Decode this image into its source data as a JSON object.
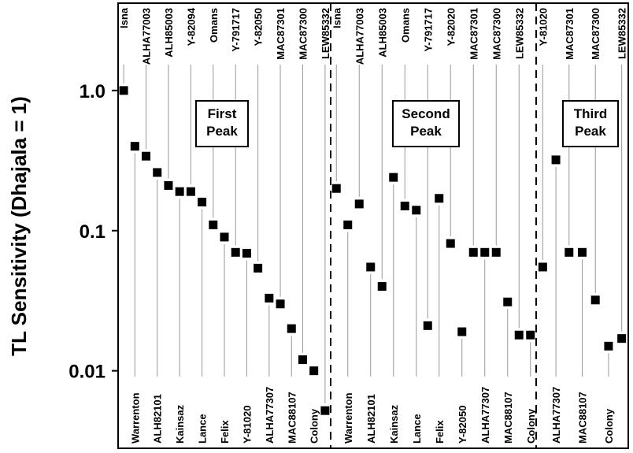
{
  "chart_data": {
    "type": "scatter",
    "ylabel": "TL Sensitivity (Dhajala = 1)",
    "yscale": "log",
    "ylim": [
      0.0028,
      4.2
    ],
    "yticks": [
      {
        "value": 1.0,
        "label": "1.0"
      },
      {
        "value": 0.1,
        "label": "0.1"
      },
      {
        "value": 0.01,
        "label": "0.01"
      }
    ],
    "grid": false,
    "panels": [
      {
        "title_lines": [
          "First",
          "Peak"
        ],
        "points": [
          {
            "label": "Isna",
            "value": 1.0,
            "label_pos": "top"
          },
          {
            "label": "Warrenton",
            "value": 0.4,
            "label_pos": "bottom"
          },
          {
            "label": "ALHA77003",
            "value": 0.34,
            "label_pos": "top"
          },
          {
            "label": "ALH82101",
            "value": 0.26,
            "label_pos": "bottom"
          },
          {
            "label": "ALH85003",
            "value": 0.21,
            "label_pos": "top"
          },
          {
            "label": "Kainsaz",
            "value": 0.19,
            "label_pos": "bottom"
          },
          {
            "label": "Y-82094",
            "value": 0.19,
            "label_pos": "top"
          },
          {
            "label": "Lance",
            "value": 0.16,
            "label_pos": "bottom"
          },
          {
            "label": "Omans",
            "value": 0.11,
            "label_pos": "top"
          },
          {
            "label": "Felix",
            "value": 0.09,
            "label_pos": "bottom"
          },
          {
            "label": "Y-791717",
            "value": 0.07,
            "label_pos": "top"
          },
          {
            "label": "Y-81020",
            "value": 0.069,
            "label_pos": "bottom"
          },
          {
            "label": "Y-82050",
            "value": 0.054,
            "label_pos": "top"
          },
          {
            "label": "ALHA77307",
            "value": 0.033,
            "label_pos": "bottom"
          },
          {
            "label": "MAC87301",
            "value": 0.03,
            "label_pos": "top"
          },
          {
            "label": "MAC88107",
            "value": 0.02,
            "label_pos": "bottom"
          },
          {
            "label": "MAC87300",
            "value": 0.012,
            "label_pos": "top"
          },
          {
            "label": "Colony",
            "value": 0.01,
            "label_pos": "bottom"
          },
          {
            "label": "LEW85332",
            "value": 0.0052,
            "label_pos": "top"
          }
        ]
      },
      {
        "title_lines": [
          "Second",
          "Peak"
        ],
        "points": [
          {
            "label": "Isna",
            "value": 0.2,
            "label_pos": "top"
          },
          {
            "label": "Warrenton",
            "value": 0.11,
            "label_pos": "bottom"
          },
          {
            "label": "ALHA77003",
            "value": 0.155,
            "label_pos": "top"
          },
          {
            "label": "ALH82101",
            "value": 0.055,
            "label_pos": "bottom"
          },
          {
            "label": "ALH85003",
            "value": 0.04,
            "label_pos": "top"
          },
          {
            "label": "Kainsaz",
            "value": 0.24,
            "label_pos": "bottom"
          },
          {
            "label": "Omans",
            "value": 0.15,
            "label_pos": "top"
          },
          {
            "label": "Lance",
            "value": 0.14,
            "label_pos": "bottom"
          },
          {
            "label": "Y-791717",
            "value": 0.021,
            "label_pos": "top"
          },
          {
            "label": "Felix",
            "value": 0.17,
            "label_pos": "bottom"
          },
          {
            "label": "Y-82020",
            "value": 0.081,
            "label_pos": "top"
          },
          {
            "label": "Y-82050",
            "value": 0.019,
            "label_pos": "bottom"
          },
          {
            "label": "MAC87301",
            "value": 0.07,
            "label_pos": "top"
          },
          {
            "label": "ALHA77307",
            "value": 0.07,
            "label_pos": "bottom"
          },
          {
            "label": "MAC87300",
            "value": 0.07,
            "label_pos": "top"
          },
          {
            "label": "MAC88107",
            "value": 0.031,
            "label_pos": "bottom"
          },
          {
            "label": "LEW85332",
            "value": 0.018,
            "label_pos": "top"
          },
          {
            "label": "Colony",
            "value": 0.018,
            "label_pos": "bottom"
          }
        ]
      },
      {
        "title_lines": [
          "Third",
          "Peak"
        ],
        "points": [
          {
            "label": "Y-81020",
            "value": 0.055,
            "label_pos": "top"
          },
          {
            "label": "ALHA77307",
            "value": 0.32,
            "label_pos": "bottom"
          },
          {
            "label": "MAC87301",
            "value": 0.07,
            "label_pos": "top"
          },
          {
            "label": "MAC88107",
            "value": 0.07,
            "label_pos": "bottom"
          },
          {
            "label": "MAC87300",
            "value": 0.032,
            "label_pos": "top"
          },
          {
            "label": "Colony",
            "value": 0.015,
            "label_pos": "bottom"
          },
          {
            "label": "LEW85332",
            "value": 0.017,
            "label_pos": "top"
          }
        ]
      }
    ]
  }
}
